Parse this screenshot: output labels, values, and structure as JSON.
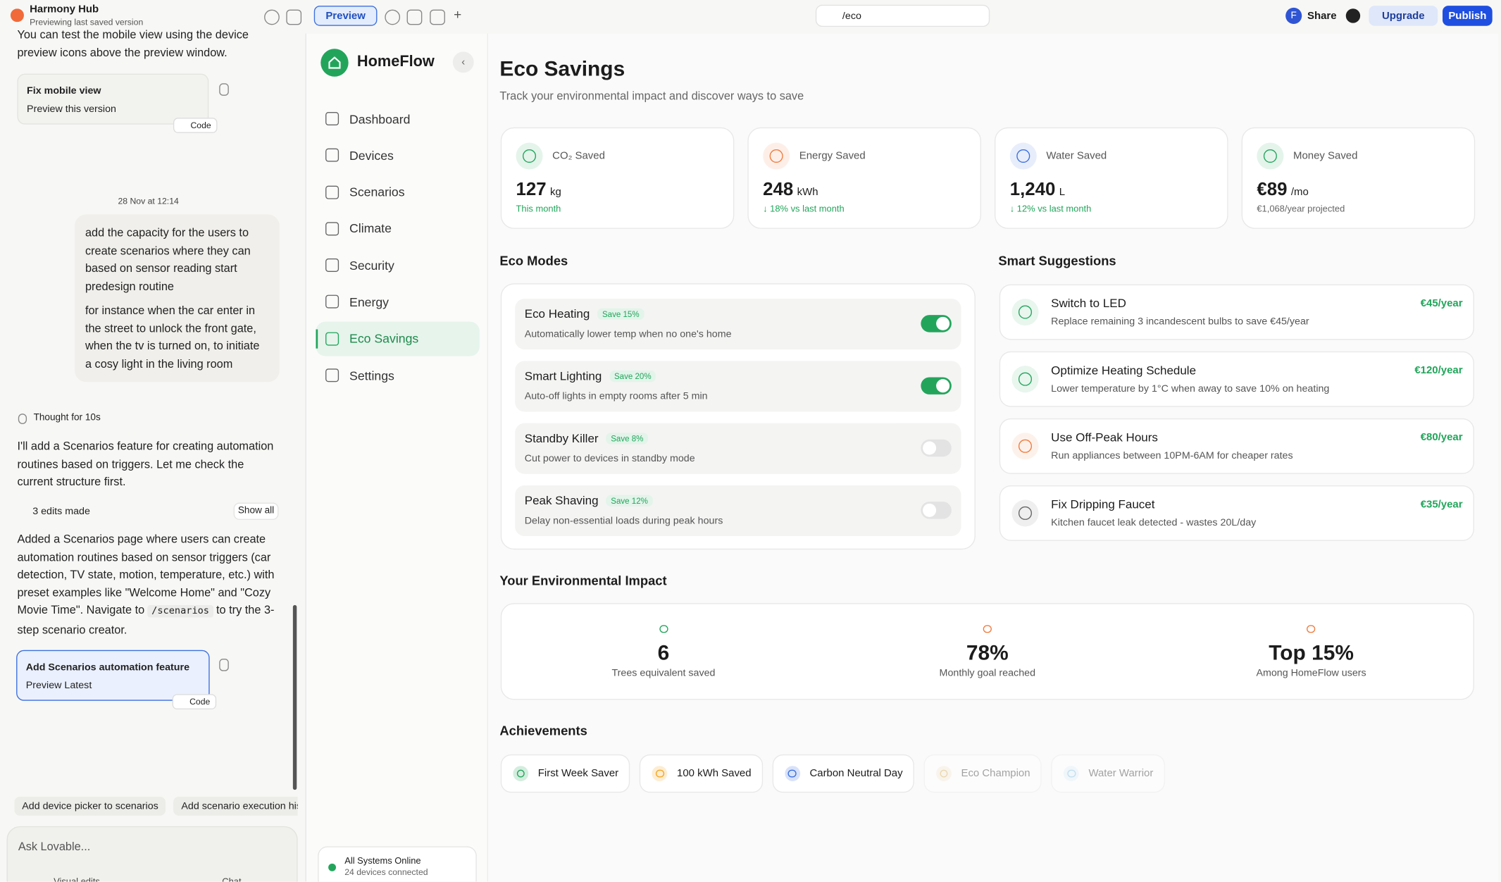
{
  "topbar": {
    "project": "Harmony Hub",
    "status": "Previewing last saved version",
    "preview": "Preview",
    "url": "/eco",
    "avatar": "F",
    "share": "Share",
    "upgrade": "Upgrade",
    "publish": "Publish"
  },
  "chat": {
    "intro": "You can test the mobile view using the device preview icons above the preview window.",
    "card1": {
      "title": "Fix mobile view",
      "subtitle": "Preview this version",
      "code": "Code"
    },
    "timestamp": "28 Nov at 12:14",
    "user_message": [
      "add the capacity for the users to create scenarios where they can based on sensor reading start predesign routine",
      "for instance when the car enter in the street to unlock the front gate, when the tv is turned on, to initiate a cosy light in the living room"
    ],
    "thought": "Thought for 10s",
    "reply": "I'll add a Scenarios feature for creating automation routines based on triggers. Let me check the current structure first.",
    "edits": "3 edits made",
    "show_all": "Show all",
    "summary_before": "Added a Scenarios page where users can create automation routines based on sensor triggers (car detection, TV state, motion, temperature, etc.) with preset examples like \"Welcome Home\" and \"Cozy Movie Time\". Navigate to",
    "summary_code": "/scenarios",
    "summary_after": "to try the 3-step scenario creator.",
    "card2": {
      "title": "Add Scenarios automation feature",
      "subtitle": "Preview Latest",
      "code": "Code"
    },
    "suggestions": [
      "Add device picker to scenarios",
      "Add scenario execution his"
    ],
    "input_placeholder": "Ask Lovable...",
    "visual_edits": "Visual edits",
    "chat_button": "Chat"
  },
  "app": {
    "brand": "HomeFlow",
    "nav": [
      "Dashboard",
      "Devices",
      "Scenarios",
      "Climate",
      "Security",
      "Energy",
      "Eco Savings",
      "Settings"
    ],
    "active_nav": 6,
    "status": {
      "title": "All Systems Online",
      "subtitle": "24 devices connected"
    }
  },
  "page": {
    "title": "Eco Savings",
    "subtitle": "Track your environmental impact and discover ways to save",
    "stats": [
      {
        "label": "CO₂ Saved",
        "value": "127",
        "unit": "kg",
        "note": "This month",
        "color": "#22a55b"
      },
      {
        "label": "Energy Saved",
        "value": "248",
        "unit": "kWh",
        "note": "↓ 18% vs last month",
        "color": "#f07b3f"
      },
      {
        "label": "Water Saved",
        "value": "1,240",
        "unit": "L",
        "note": "↓ 12% vs last month",
        "color": "#3b6fe0"
      },
      {
        "label": "Money Saved",
        "value": "€89",
        "unit": "/mo",
        "note": "€1,068/year projected",
        "color": "#22a55b"
      }
    ],
    "eco_modes": {
      "title": "Eco Modes",
      "items": [
        {
          "name": "Eco Heating",
          "badge": "Save 15%",
          "desc": "Automatically lower temp when no one's home",
          "on": true
        },
        {
          "name": "Smart Lighting",
          "badge": "Save 20%",
          "desc": "Auto-off lights in empty rooms after 5 min",
          "on": true
        },
        {
          "name": "Standby Killer",
          "badge": "Save 8%",
          "desc": "Cut power to devices in standby mode",
          "on": false
        },
        {
          "name": "Peak Shaving",
          "badge": "Save 12%",
          "desc": "Delay non-essential loads during peak hours",
          "on": false
        }
      ]
    },
    "suggestions": {
      "title": "Smart Suggestions",
      "items": [
        {
          "title": "Switch to LED",
          "desc": "Replace remaining 3 incandescent bulbs to save €45/year",
          "saving": "€45/year",
          "color": "#22a55b"
        },
        {
          "title": "Optimize Heating Schedule",
          "desc": "Lower temperature by 1°C when away to save 10% on heating",
          "saving": "€120/year",
          "color": "#22a55b"
        },
        {
          "title": "Use Off-Peak Hours",
          "desc": "Run appliances between 10PM-6AM for cheaper rates",
          "saving": "€80/year",
          "color": "#f07b3f"
        },
        {
          "title": "Fix Dripping Faucet",
          "desc": "Kitchen faucet leak detected - wastes 20L/day",
          "saving": "€35/year",
          "color": "#666666"
        }
      ]
    },
    "impact": {
      "title": "Your Environmental Impact",
      "items": [
        {
          "value": "6",
          "label": "Trees equivalent saved",
          "color": "#22a55b"
        },
        {
          "value": "78%",
          "label": "Monthly goal reached",
          "color": "#f07b3f"
        },
        {
          "value": "Top 15%",
          "label": "Among HomeFlow users",
          "color": "#f07b3f"
        }
      ]
    },
    "achievements": {
      "title": "Achievements",
      "items": [
        {
          "name": "First Week Saver",
          "unlocked": true,
          "color": "#22a55b"
        },
        {
          "name": "100 kWh Saved",
          "unlocked": true,
          "color": "#f5a623"
        },
        {
          "name": "Carbon Neutral Day",
          "unlocked": true,
          "color": "#3b6fe0"
        },
        {
          "name": "Eco Champion",
          "unlocked": false,
          "color": "#d9a441"
        },
        {
          "name": "Water Warrior",
          "unlocked": false,
          "color": "#6fb8e8"
        }
      ]
    }
  }
}
